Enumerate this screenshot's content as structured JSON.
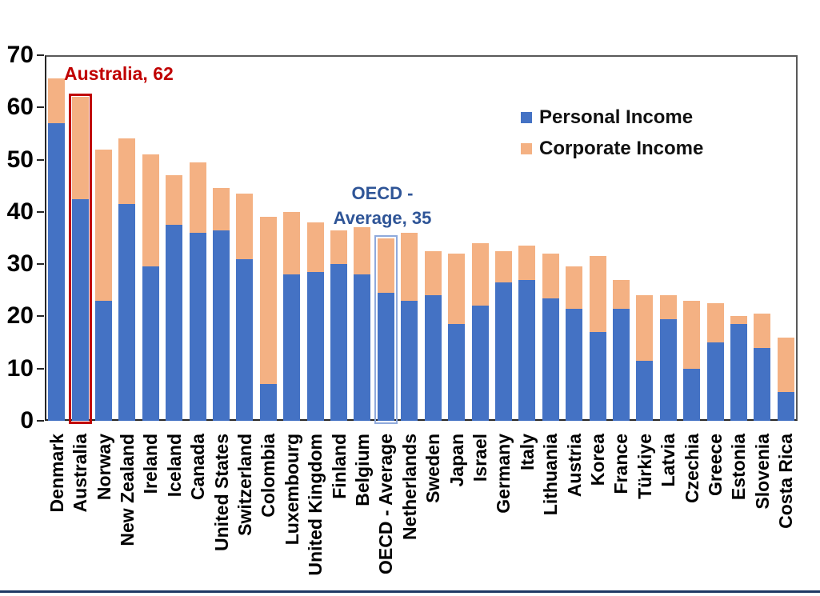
{
  "chart_data": {
    "type": "bar",
    "stacked": true,
    "title": "",
    "xlabel": "",
    "ylabel": "",
    "ylim": [
      0,
      70
    ],
    "yticks": [
      0,
      10,
      20,
      30,
      40,
      50,
      60,
      70
    ],
    "grid": false,
    "legend_position": "inside-upper-right",
    "categories": [
      "Denmark",
      "Australia",
      "Norway",
      "New Zealand",
      "Ireland",
      "Iceland",
      "Canada",
      "United States",
      "Switzerland",
      "Colombia",
      "Luxembourg",
      "United Kingdom",
      "Finland",
      "Belgium",
      "OECD - Average",
      "Netherlands",
      "Sweden",
      "Japan",
      "Israel",
      "Germany",
      "Italy",
      "Lithuania",
      "Austria",
      "Korea",
      "France",
      "Türkiye",
      "Latvia",
      "Czechia",
      "Greece",
      "Estonia",
      "Slovenia",
      "Costa Rica"
    ],
    "series": [
      {
        "name": "Personal Income",
        "color": "#4472C4",
        "values": [
          57,
          42.5,
          23,
          41.5,
          29.5,
          37.5,
          36,
          36.5,
          31,
          7,
          28,
          28.5,
          30,
          28,
          24.5,
          23,
          24,
          18.5,
          22,
          26.5,
          27,
          23.5,
          21.5,
          17,
          21.5,
          11.5,
          19.5,
          10,
          15,
          18.5,
          14,
          5.5
        ]
      },
      {
        "name": "Corporate Income",
        "color": "#F4B183",
        "values": [
          8.5,
          19.5,
          29,
          12.5,
          21.5,
          9.5,
          13.5,
          8,
          12.5,
          32,
          12,
          9.5,
          6.5,
          9,
          10.5,
          13,
          8.5,
          13.5,
          12,
          6,
          6.5,
          8.5,
          8,
          14.5,
          5.5,
          12.5,
          4.5,
          13,
          7.5,
          1.5,
          6.5,
          10.5
        ]
      }
    ],
    "annotations": [
      {
        "lines": [
          "Australia, 62"
        ],
        "color": "#C00000",
        "target": "Australia"
      },
      {
        "lines": [
          "OECD -",
          "Average, 35"
        ],
        "color": "#2F5597",
        "target": "OECD - Average"
      }
    ],
    "highlight_boxes": [
      {
        "category": "Australia",
        "value": 62,
        "border_color": "#C00000"
      },
      {
        "category": "OECD - Average",
        "value": 35,
        "border_color": "#8FAADC"
      }
    ]
  },
  "legend": {
    "items": [
      {
        "label": "Personal Income",
        "color": "#4472C4"
      },
      {
        "label": "Corporate Income",
        "color": "#F4B183"
      }
    ]
  },
  "colors": {
    "axis_line": "#262626",
    "plot_border": "#595959",
    "tick_text": "#000000",
    "footer_rule": "#1F3864",
    "australia_accent": "#C00000",
    "oecd_accent": "#2F5597",
    "oecd_box_outline": "#8FAADC"
  }
}
